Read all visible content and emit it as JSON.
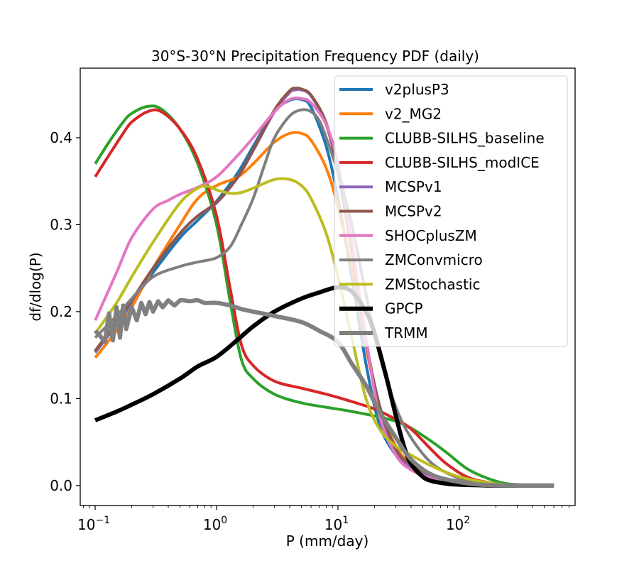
{
  "chart_data": {
    "type": "line",
    "title": "30°S-30°N Precipitation Frequency PDF (daily)",
    "xlabel": "P (mm/day)",
    "ylabel": "df/dlog(P)",
    "xscale": "log",
    "xlim": [
      0.0753,
      898
    ],
    "ylim": [
      -0.023,
      0.48
    ],
    "grid": false,
    "legend_position": "top-right",
    "x_ticks": [
      {
        "value": 0.1,
        "base": "10",
        "exp": "−1"
      },
      {
        "value": 1,
        "base": "10",
        "exp": "0"
      },
      {
        "value": 10,
        "base": "10",
        "exp": "1"
      },
      {
        "value": 100,
        "base": "10",
        "exp": "2"
      }
    ],
    "y_ticks": [
      {
        "value": 0.0,
        "label": "0.0"
      },
      {
        "value": 0.1,
        "label": "0.1"
      },
      {
        "value": 0.2,
        "label": "0.2"
      },
      {
        "value": 0.3,
        "label": "0.3"
      },
      {
        "value": 0.4,
        "label": "0.4"
      }
    ],
    "series": [
      {
        "name": "v2plusP3",
        "color": "#1f77b4",
        "width": "normal",
        "x": [
          0.1,
          0.15,
          0.2,
          0.3,
          0.5,
          0.7,
          1.0,
          1.5,
          2.0,
          3.0,
          4.0,
          5.0,
          6.0,
          8.0,
          10,
          13,
          17,
          22,
          30,
          40,
          60,
          100,
          200,
          600
        ],
        "y": [
          0.153,
          0.185,
          0.21,
          0.245,
          0.285,
          0.305,
          0.327,
          0.36,
          0.39,
          0.43,
          0.443,
          0.444,
          0.435,
          0.39,
          0.33,
          0.24,
          0.14,
          0.07,
          0.035,
          0.02,
          0.01,
          0.004,
          0.001,
          0.0
        ]
      },
      {
        "name": "v2_MG2",
        "color": "#ff7f0e",
        "width": "normal",
        "x": [
          0.1,
          0.15,
          0.2,
          0.3,
          0.5,
          0.7,
          1.0,
          1.5,
          2.0,
          3.0,
          4.0,
          5.0,
          6.0,
          8.0,
          10,
          13,
          17,
          22,
          30,
          40,
          60,
          100,
          200,
          600
        ],
        "y": [
          0.147,
          0.178,
          0.205,
          0.25,
          0.3,
          0.33,
          0.345,
          0.355,
          0.37,
          0.395,
          0.405,
          0.405,
          0.397,
          0.365,
          0.32,
          0.25,
          0.16,
          0.09,
          0.045,
          0.025,
          0.012,
          0.004,
          0.001,
          0.0
        ]
      },
      {
        "name": "CLUBB-SILHS_baseline",
        "color": "#2ca02c",
        "width": "normal",
        "x": [
          0.1,
          0.13,
          0.17,
          0.2,
          0.27,
          0.35,
          0.5,
          0.7,
          1.0,
          1.3,
          1.6,
          2.0,
          3.0,
          5.0,
          8.0,
          12,
          20,
          30,
          40,
          60,
          80,
          120,
          200,
          300,
          600
        ],
        "y": [
          0.37,
          0.395,
          0.418,
          0.428,
          0.436,
          0.433,
          0.41,
          0.37,
          0.3,
          0.21,
          0.145,
          0.123,
          0.105,
          0.095,
          0.09,
          0.086,
          0.08,
          0.074,
          0.066,
          0.05,
          0.037,
          0.018,
          0.005,
          0.001,
          0.0
        ]
      },
      {
        "name": "CLUBB-SILHS_modICE",
        "color": "#d62728",
        "width": "normal",
        "x": [
          0.1,
          0.13,
          0.17,
          0.2,
          0.27,
          0.35,
          0.5,
          0.7,
          1.0,
          1.3,
          1.6,
          2.0,
          3.0,
          5.0,
          8.0,
          12,
          20,
          30,
          40,
          60,
          80,
          120,
          200,
          300,
          600
        ],
        "y": [
          0.355,
          0.38,
          0.405,
          0.418,
          0.43,
          0.43,
          0.41,
          0.375,
          0.31,
          0.225,
          0.162,
          0.138,
          0.12,
          0.112,
          0.105,
          0.098,
          0.088,
          0.076,
          0.065,
          0.04,
          0.024,
          0.009,
          0.002,
          0.0,
          0.0
        ]
      },
      {
        "name": "MCSPv1",
        "color": "#9467bd",
        "width": "normal",
        "x": [
          0.1,
          0.15,
          0.2,
          0.3,
          0.5,
          0.7,
          1.0,
          1.5,
          2.0,
          3.0,
          4.0,
          4.5,
          5.0,
          6.0,
          8.0,
          10,
          13,
          17,
          22,
          30,
          40,
          60,
          100,
          200,
          600
        ],
        "y": [
          0.154,
          0.186,
          0.212,
          0.25,
          0.29,
          0.31,
          0.325,
          0.355,
          0.385,
          0.43,
          0.452,
          0.455,
          0.455,
          0.448,
          0.415,
          0.36,
          0.27,
          0.165,
          0.09,
          0.04,
          0.022,
          0.01,
          0.004,
          0.001,
          0.0
        ]
      },
      {
        "name": "MCSPv2",
        "color": "#8c564b",
        "width": "normal",
        "x": [
          0.1,
          0.15,
          0.2,
          0.3,
          0.5,
          0.7,
          1.0,
          1.5,
          2.0,
          3.0,
          4.0,
          4.5,
          5.0,
          6.0,
          8.0,
          10,
          13,
          17,
          22,
          30,
          40,
          60,
          100,
          200,
          600
        ],
        "y": [
          0.155,
          0.188,
          0.213,
          0.25,
          0.29,
          0.31,
          0.326,
          0.355,
          0.386,
          0.432,
          0.454,
          0.457,
          0.456,
          0.449,
          0.417,
          0.362,
          0.272,
          0.167,
          0.092,
          0.042,
          0.024,
          0.012,
          0.005,
          0.001,
          0.0
        ]
      },
      {
        "name": "SHOCplusZM",
        "color": "#e377c2",
        "width": "normal",
        "x": [
          0.1,
          0.15,
          0.2,
          0.3,
          0.4,
          0.5,
          0.7,
          1.0,
          1.5,
          2.0,
          3.0,
          4.0,
          5.0,
          6.0,
          8.0,
          10,
          13,
          17,
          22,
          30,
          40,
          60,
          100,
          200,
          600
        ],
        "y": [
          0.19,
          0.245,
          0.285,
          0.318,
          0.328,
          0.335,
          0.343,
          0.355,
          0.38,
          0.4,
          0.43,
          0.444,
          0.445,
          0.44,
          0.415,
          0.37,
          0.28,
          0.17,
          0.08,
          0.035,
          0.018,
          0.008,
          0.003,
          0.001,
          0.0
        ]
      },
      {
        "name": "ZMConvmicro",
        "color": "#7f7f7f",
        "width": "normal",
        "x": [
          0.1,
          0.15,
          0.2,
          0.3,
          0.5,
          0.7,
          1.0,
          1.3,
          1.6,
          2.0,
          2.5,
          3.0,
          4.0,
          5.0,
          6.0,
          7.0,
          8.0,
          10,
          13,
          17,
          22,
          30,
          40,
          60,
          100,
          150,
          300,
          600
        ],
        "y": [
          0.17,
          0.195,
          0.215,
          0.24,
          0.252,
          0.257,
          0.262,
          0.275,
          0.3,
          0.33,
          0.37,
          0.4,
          0.425,
          0.432,
          0.43,
          0.42,
          0.4,
          0.36,
          0.3,
          0.22,
          0.15,
          0.09,
          0.055,
          0.025,
          0.008,
          0.003,
          0.0,
          0.0
        ]
      },
      {
        "name": "ZMStochastic",
        "color": "#bcbd22",
        "width": "normal",
        "x": [
          0.1,
          0.15,
          0.2,
          0.3,
          0.5,
          0.7,
          0.85,
          1.0,
          1.3,
          1.6,
          2.0,
          3.0,
          4.0,
          5.0,
          6.0,
          8.0,
          10,
          13,
          17,
          22,
          30,
          40,
          60,
          100,
          200,
          400,
          600
        ],
        "y": [
          0.175,
          0.21,
          0.24,
          0.28,
          0.325,
          0.342,
          0.344,
          0.34,
          0.336,
          0.337,
          0.342,
          0.352,
          0.352,
          0.345,
          0.33,
          0.29,
          0.24,
          0.17,
          0.1,
          0.065,
          0.045,
          0.035,
          0.022,
          0.01,
          0.002,
          0.0,
          0.0
        ]
      },
      {
        "name": "GPCP",
        "color": "#000000",
        "width": "thick",
        "x": [
          0.1,
          0.15,
          0.2,
          0.3,
          0.5,
          0.7,
          1.0,
          1.5,
          2.0,
          3.0,
          5.0,
          7.0,
          10,
          13,
          17,
          20,
          25,
          30,
          35,
          40,
          50,
          60,
          80,
          100,
          200,
          600
        ],
        "y": [
          0.075,
          0.085,
          0.093,
          0.105,
          0.123,
          0.137,
          0.148,
          0.168,
          0.183,
          0.2,
          0.215,
          0.222,
          0.228,
          0.223,
          0.2,
          0.175,
          0.125,
          0.08,
          0.045,
          0.025,
          0.01,
          0.005,
          0.002,
          0.001,
          0.0,
          0.0
        ]
      },
      {
        "name": "TRMM",
        "color": "#808080",
        "width": "thick",
        "x": [
          0.1,
          0.11,
          0.12,
          0.13,
          0.14,
          0.15,
          0.16,
          0.17,
          0.18,
          0.2,
          0.22,
          0.24,
          0.26,
          0.28,
          0.3,
          0.33,
          0.36,
          0.4,
          0.45,
          0.5,
          0.6,
          0.7,
          0.8,
          1.0,
          1.3,
          1.6,
          2.0,
          3.0,
          5.0,
          7.0,
          10,
          13,
          17,
          22,
          30,
          40,
          60,
          100,
          150,
          300,
          600
        ],
        "y": [
          0.178,
          0.172,
          0.165,
          0.198,
          0.167,
          0.205,
          0.17,
          0.207,
          0.18,
          0.205,
          0.19,
          0.21,
          0.197,
          0.211,
          0.2,
          0.212,
          0.205,
          0.213,
          0.207,
          0.213,
          0.212,
          0.213,
          0.21,
          0.21,
          0.207,
          0.203,
          0.2,
          0.195,
          0.188,
          0.178,
          0.165,
          0.14,
          0.115,
          0.085,
          0.055,
          0.03,
          0.012,
          0.004,
          0.001,
          0.0,
          0.0
        ]
      }
    ]
  }
}
